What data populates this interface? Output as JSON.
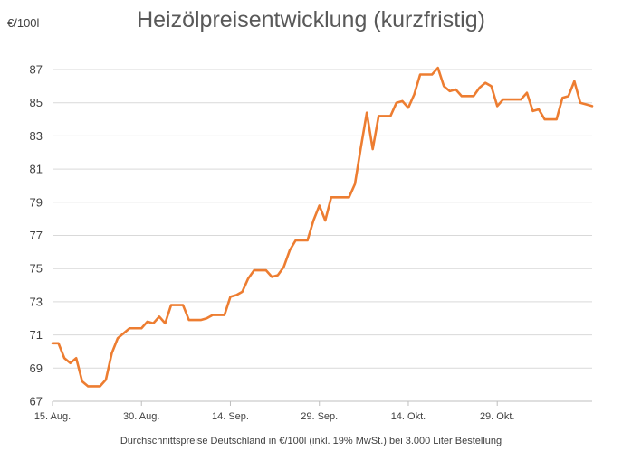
{
  "chart_data": {
    "type": "line",
    "title": "Heizölpreisentwicklung (kurzfristig)",
    "ylabel": "€/100l",
    "xlabel": "Durchschnittspreise Deutschland in €/100l (inkl. 19% MwSt.) bei 3.000 Liter Bestellung",
    "ylim": [
      67,
      87
    ],
    "yticks": [
      67,
      69,
      71,
      73,
      75,
      77,
      79,
      81,
      83,
      85,
      87
    ],
    "grid": true,
    "x_tick_labels": [
      "15. Aug.",
      "30. Aug.",
      "14. Sep.",
      "29. Sep.",
      "14. Okt.",
      "29. Okt."
    ],
    "x_tick_day_index": [
      0,
      15,
      30,
      45,
      60,
      75
    ],
    "x_range_days": [
      0,
      91
    ],
    "line_color": "#ED7D31",
    "series": [
      {
        "name": "",
        "x": [
          0,
          1,
          2,
          3,
          4,
          5,
          6,
          7,
          8,
          9,
          10,
          11,
          12,
          13,
          14,
          15,
          16,
          17,
          18,
          19,
          20,
          21,
          22,
          23,
          24,
          25,
          26,
          27,
          28,
          29,
          30,
          31,
          32,
          33,
          34,
          35,
          36,
          37,
          38,
          39,
          40,
          41,
          42,
          43,
          44,
          45,
          46,
          47,
          48,
          49,
          50,
          51,
          52,
          53,
          54,
          55,
          56,
          57,
          58,
          59,
          60,
          61,
          62,
          63,
          64,
          65,
          66,
          67,
          68,
          69,
          70,
          71,
          72,
          73,
          74,
          75,
          76,
          77,
          78,
          79,
          80,
          81,
          82,
          83,
          84,
          85,
          86,
          87,
          88,
          89,
          90,
          91
        ],
        "values": [
          70.5,
          70.5,
          69.6,
          69.3,
          69.6,
          68.2,
          67.9,
          67.9,
          67.9,
          68.3,
          69.9,
          70.8,
          71.1,
          71.4,
          71.4,
          71.4,
          71.8,
          71.7,
          72.1,
          71.7,
          72.8,
          72.8,
          72.8,
          71.9,
          71.9,
          71.9,
          72.0,
          72.2,
          72.2,
          72.2,
          73.3,
          73.4,
          73.6,
          74.4,
          74.9,
          74.9,
          74.9,
          74.5,
          74.6,
          75.1,
          76.1,
          76.7,
          76.7,
          76.7,
          77.9,
          78.8,
          77.9,
          79.3,
          79.3,
          79.3,
          79.3,
          80.1,
          82.3,
          84.4,
          82.2,
          84.2,
          84.2,
          84.2,
          85.0,
          85.1,
          84.7,
          85.5,
          86.7,
          86.7,
          86.7,
          87.1,
          86.0,
          85.7,
          85.8,
          85.4,
          85.4,
          85.4,
          85.9,
          86.2,
          86.0,
          84.8,
          85.2,
          85.2,
          85.2,
          85.2,
          85.6,
          84.5,
          84.6,
          84.0,
          84.0,
          84.0,
          85.3,
          85.4,
          86.3,
          85.0,
          84.9,
          84.8
        ]
      }
    ]
  }
}
